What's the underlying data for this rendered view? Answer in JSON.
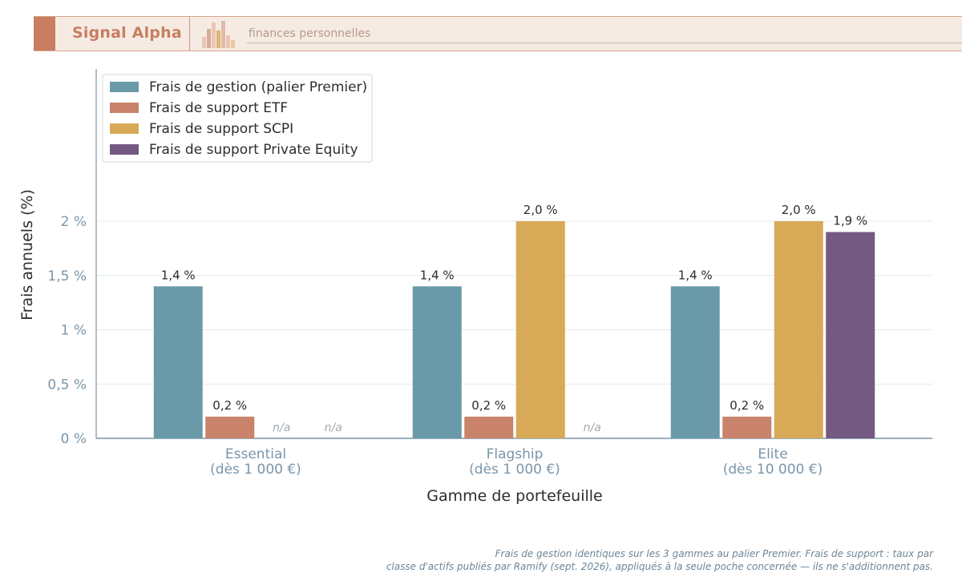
{
  "header": {
    "brand": "Signal Alpha",
    "tagline": "finances personnelles"
  },
  "colors": {
    "management": "#6a9aa9",
    "etf": "#c8836a",
    "scpi": "#d8a957",
    "pe": "#745a82",
    "axis": "#7a96aa",
    "brand": "#c77e61"
  },
  "chart_data": {
    "type": "bar",
    "ylabel": "Frais annuels (%)",
    "xlabel": "Gamme de portefeuille",
    "ylim": [
      0,
      2.0
    ],
    "yticks": [
      {
        "value": 0,
        "label": "0 %"
      },
      {
        "value": 0.5,
        "label": "0,5 %"
      },
      {
        "value": 1.0,
        "label": "1 %"
      },
      {
        "value": 1.5,
        "label": "1,5 %"
      },
      {
        "value": 2.0,
        "label": "2 %"
      }
    ],
    "categories": [
      {
        "name": "Essential",
        "sub": "(dès 1 000 €)"
      },
      {
        "name": "Flagship",
        "sub": "(dès 1 000 €)"
      },
      {
        "name": "Elite",
        "sub": "(dès 10 000 €)"
      }
    ],
    "series": [
      {
        "name": "Frais de gestion (palier Premier)",
        "color": "#6a9aa9",
        "values": [
          1.4,
          1.4,
          1.4
        ],
        "labels": [
          "1,4 %",
          "1,4 %",
          "1,4 %"
        ]
      },
      {
        "name": "Frais de support ETF",
        "color": "#c8836a",
        "values": [
          0.2,
          0.2,
          0.2
        ],
        "labels": [
          "0,2 %",
          "0,2 %",
          "0,2 %"
        ]
      },
      {
        "name": "Frais de support SCPI",
        "color": "#d8a957",
        "values": [
          null,
          2.0,
          2.0
        ],
        "labels": [
          "n/a",
          "2,0 %",
          "2,0 %"
        ]
      },
      {
        "name": "Frais de support Private Equity",
        "color": "#745a82",
        "values": [
          null,
          null,
          1.9
        ],
        "labels": [
          "n/a",
          "n/a",
          "1,9 %"
        ]
      }
    ],
    "grid": true,
    "legend": "top-left"
  },
  "footnote": {
    "line1": "Frais de gestion identiques sur les 3 gammes au palier Premier. Frais de support : taux par",
    "line2": "classe d'actifs publiés par Ramify (sept. 2026), appliqués à la seule poche concernée — ils ne s'additionnent pas."
  }
}
